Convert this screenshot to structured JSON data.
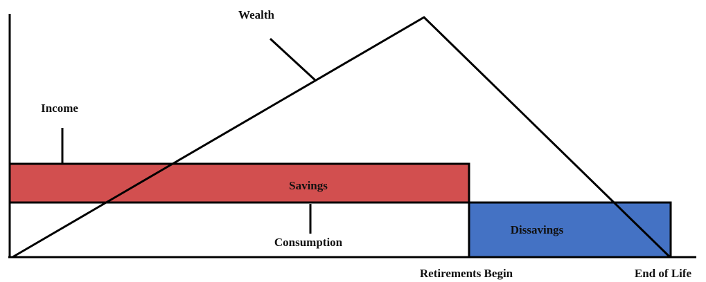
{
  "labels": {
    "wealth": "Wealth",
    "income": "Income",
    "savings": "Savings",
    "consumption": "Consumption",
    "dissavings": "Dissavings",
    "retirement": "Retirements Begin",
    "end_of_life": "End of Life"
  }
}
